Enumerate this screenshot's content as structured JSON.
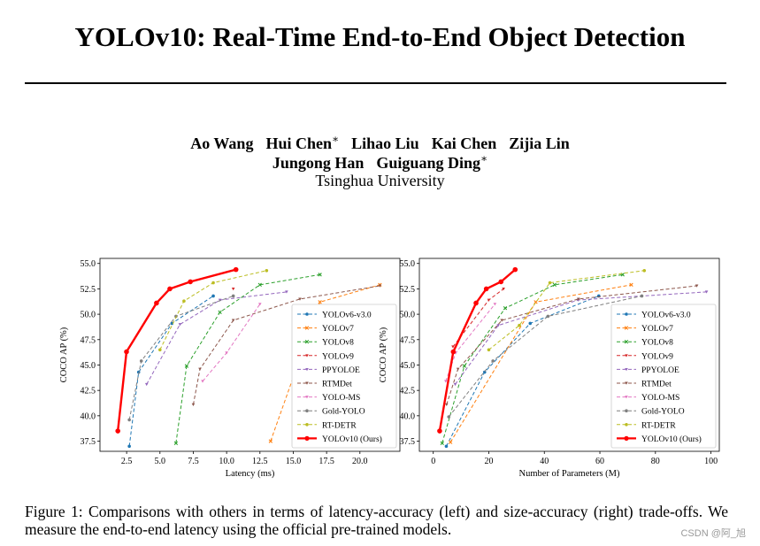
{
  "paper": {
    "title": "YOLOv10: Real-Time End-to-End Object Detection",
    "authors_line1": [
      {
        "name": "Ao Wang",
        "mark": ""
      },
      {
        "name": "Hui Chen",
        "mark": "∗"
      },
      {
        "name": "Lihao Liu",
        "mark": ""
      },
      {
        "name": "Kai Chen",
        "mark": ""
      },
      {
        "name": "Zijia Lin",
        "mark": ""
      }
    ],
    "authors_line2": [
      {
        "name": "Jungong Han",
        "mark": ""
      },
      {
        "name": "Guiguang Ding",
        "mark": "∗"
      }
    ],
    "affiliation": "Tsinghua University",
    "caption": "Figure 1: Comparisons with others in terms of latency-accuracy (left) and size-accuracy (right) trade-offs. We measure the end-to-end latency using the official pre-trained models.",
    "watermark": "CSDN @阿_旭"
  },
  "chart_data": [
    {
      "type": "line",
      "xlabel": "Latency (ms)",
      "ylabel": "COCO AP (%)",
      "xlim": [
        0.5,
        23.0
      ],
      "ylim": [
        36.5,
        55.5
      ],
      "xticks": [
        "2.5",
        "5.0",
        "7.5",
        "10.0",
        "12.5",
        "15.0",
        "17.5",
        "20.0"
      ],
      "yticks": [
        "37.5",
        "40.0",
        "42.5",
        "45.0",
        "47.5",
        "50.0",
        "52.5",
        "55.0"
      ],
      "legend": "bottom-right",
      "series": [
        {
          "name": "YOLOv6-v3.0",
          "color": "#1f77b4",
          "marker": "dot",
          "x": [
            2.7,
            3.4,
            5.9,
            9.0
          ],
          "y": [
            37.0,
            44.3,
            49.1,
            51.8
          ]
        },
        {
          "name": "YOLOv7",
          "color": "#ff7f0e",
          "marker": "x",
          "x": [
            13.3,
            17.0,
            21.5
          ],
          "y": [
            37.5,
            51.2,
            52.9
          ]
        },
        {
          "name": "YOLOv8",
          "color": "#2ca02c",
          "marker": "x",
          "x": [
            6.2,
            7.0,
            9.5,
            12.5,
            17.0
          ],
          "y": [
            37.3,
            44.9,
            50.2,
            52.9,
            53.9
          ]
        },
        {
          "name": "YOLOv9",
          "color": "#d62728",
          "marker": "tri",
          "x": [
            10.5
          ],
          "y": [
            52.5
          ]
        },
        {
          "name": "PPYOLOE",
          "color": "#9467bd",
          "marker": "tri",
          "x": [
            4.0,
            6.5,
            9.5,
            14.5
          ],
          "y": [
            43.1,
            49.0,
            51.4,
            52.2
          ]
        },
        {
          "name": "RTMDet",
          "color": "#8c564b",
          "marker": "tri",
          "x": [
            7.5,
            8.0,
            10.5,
            15.5,
            21.5
          ],
          "y": [
            41.1,
            44.6,
            49.4,
            51.5,
            52.8
          ]
        },
        {
          "name": "YOLO-MS",
          "color": "#e377c2",
          "marker": "tri",
          "x": [
            8.2,
            10.0,
            12.5
          ],
          "y": [
            43.4,
            46.2,
            51.0
          ]
        },
        {
          "name": "Gold-YOLO",
          "color": "#7f7f7f",
          "marker": "dot",
          "x": [
            2.7,
            3.6,
            6.2,
            10.5
          ],
          "y": [
            39.6,
            45.4,
            49.8,
            51.8
          ]
        },
        {
          "name": "RT-DETR",
          "color": "#bcbd22",
          "marker": "dot",
          "x": [
            5.0,
            6.8,
            9.0,
            13.0
          ],
          "y": [
            46.5,
            51.3,
            53.1,
            54.3
          ]
        },
        {
          "name": "YOLOv10 (Ours)",
          "color": "#ff0000",
          "marker": "dot",
          "bold": true,
          "x": [
            1.84,
            2.49,
            4.74,
            5.74,
            7.28,
            10.7
          ],
          "y": [
            38.5,
            46.3,
            51.1,
            52.5,
            53.2,
            54.4
          ]
        }
      ]
    },
    {
      "type": "line",
      "xlabel": "Number of Parameters (M)",
      "ylabel": "COCO AP (%)",
      "xlim": [
        -5,
        103
      ],
      "ylim": [
        36.5,
        55.5
      ],
      "xticks": [
        "0",
        "20",
        "40",
        "60",
        "80",
        "100"
      ],
      "yticks": [
        "37.5",
        "40.0",
        "42.5",
        "45.0",
        "47.5",
        "50.0",
        "52.5",
        "55.0"
      ],
      "legend": "bottom-right",
      "series": [
        {
          "name": "YOLOv6-v3.0",
          "color": "#1f77b4",
          "marker": "dot",
          "x": [
            4.7,
            18.5,
            34.9,
            59.6
          ],
          "y": [
            37.0,
            44.3,
            49.1,
            51.8
          ]
        },
        {
          "name": "YOLOv7",
          "color": "#ff7f0e",
          "marker": "x",
          "x": [
            6.2,
            36.9,
            71.3
          ],
          "y": [
            37.4,
            51.2,
            52.9
          ]
        },
        {
          "name": "YOLOv8",
          "color": "#2ca02c",
          "marker": "x",
          "x": [
            3.2,
            11.2,
            25.9,
            43.7,
            68.2
          ],
          "y": [
            37.3,
            44.9,
            50.6,
            52.9,
            53.9
          ]
        },
        {
          "name": "YOLOv9",
          "color": "#d62728",
          "marker": "tri",
          "x": [
            7.1,
            20.0,
            25.3
          ],
          "y": [
            46.8,
            51.4,
            52.5
          ]
        },
        {
          "name": "PPYOLOE",
          "color": "#9467bd",
          "marker": "tri",
          "x": [
            7.9,
            23.4,
            52.2,
            98.4
          ],
          "y": [
            43.1,
            48.9,
            51.4,
            52.2
          ]
        },
        {
          "name": "RTMDet",
          "color": "#8c564b",
          "marker": "tri",
          "x": [
            4.8,
            8.9,
            24.7,
            52.3,
            94.9
          ],
          "y": [
            41.1,
            44.6,
            49.4,
            51.5,
            52.8
          ]
        },
        {
          "name": "YOLO-MS",
          "color": "#e377c2",
          "marker": "tri",
          "x": [
            4.5,
            8.1,
            22.2
          ],
          "y": [
            43.4,
            46.2,
            51.0
          ]
        },
        {
          "name": "Gold-YOLO",
          "color": "#7f7f7f",
          "marker": "dot",
          "x": [
            5.6,
            21.5,
            41.3,
            75.1
          ],
          "y": [
            39.9,
            45.4,
            49.8,
            51.8
          ]
        },
        {
          "name": "RT-DETR",
          "color": "#bcbd22",
          "marker": "dot",
          "x": [
            20.0,
            31.0,
            42.0,
            76.0
          ],
          "y": [
            46.5,
            48.9,
            53.1,
            54.3
          ]
        },
        {
          "name": "YOLOv10 (Ours)",
          "color": "#ff0000",
          "marker": "dot",
          "bold": true,
          "x": [
            2.3,
            7.2,
            15.4,
            19.1,
            24.4,
            29.5
          ],
          "y": [
            38.5,
            46.3,
            51.1,
            52.5,
            53.2,
            54.4
          ]
        }
      ]
    }
  ]
}
